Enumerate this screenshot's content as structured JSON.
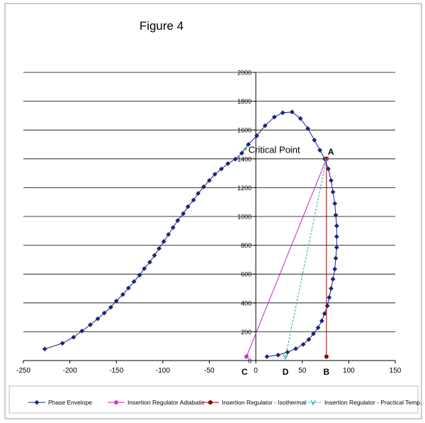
{
  "chart_data": {
    "type": "scatter",
    "title": "Figure 4",
    "xlabel": "",
    "ylabel": "",
    "xlim": [
      -250,
      150
    ],
    "ylim": [
      0,
      2000
    ],
    "x_ticks": [
      -250,
      -200,
      -150,
      -100,
      -50,
      0,
      50,
      100,
      150
    ],
    "y_ticks": [
      0,
      200,
      400,
      600,
      800,
      1000,
      1200,
      1400,
      1600,
      1800,
      2000
    ],
    "grid": "horizontal",
    "legend_position": "bottom",
    "colors": {
      "envelope": "#1a237e",
      "adiabatic": "#c026c0",
      "isothermal": "#8b0000",
      "practical": "#2aa6a6",
      "grid": "#000000",
      "critical_point": "#4caf50"
    },
    "series": [
      {
        "name": "Phase Envelope",
        "style": "line-diamond",
        "x": [
          -227,
          -208,
          -196,
          -187,
          -178,
          -170,
          -163,
          -156,
          -150,
          -143,
          -137,
          -131,
          -125,
          -120,
          -114,
          -109,
          -104,
          -99,
          -94,
          -89,
          -84,
          -78,
          -73,
          -67,
          -62,
          -56,
          -50,
          -44,
          -37,
          -30,
          -22,
          -15,
          -8,
          1,
          10,
          20,
          29,
          39,
          48,
          56,
          63,
          69,
          74,
          78,
          81,
          83,
          85,
          86,
          87,
          87,
          87,
          86,
          85,
          83,
          81,
          79,
          77,
          74,
          71,
          67,
          62,
          57,
          51,
          43,
          34,
          24,
          12
        ],
        "y": [
          80,
          120,
          162,
          205,
          248,
          290,
          330,
          370,
          413,
          458,
          503,
          548,
          593,
          638,
          683,
          730,
          778,
          826,
          875,
          923,
          972,
          1020,
          1068,
          1114,
          1160,
          1206,
          1250,
          1293,
          1330,
          1367,
          1398,
          1440,
          1500,
          1560,
          1630,
          1690,
          1720,
          1725,
          1680,
          1610,
          1530,
          1460,
          1400,
          1330,
          1250,
          1170,
          1090,
          1010,
          935,
          860,
          785,
          710,
          635,
          565,
          500,
          438,
          380,
          326,
          275,
          228,
          186,
          146,
          112,
          82,
          58,
          38,
          27
        ]
      },
      {
        "name": "Insertion Regulator Adiabatic",
        "style": "line-star",
        "x": [
          -10,
          76
        ],
        "y": [
          27,
          1400
        ]
      },
      {
        "name": "Insertion Regulator - Isothermal",
        "style": "line-circle",
        "x": [
          76,
          76
        ],
        "y": [
          27,
          1400
        ]
      },
      {
        "name": "Insertion Regulator - Practical Temp.",
        "style": "dashed-tick",
        "x": [
          32,
          76
        ],
        "y": [
          27,
          1400
        ]
      }
    ],
    "annotations": [
      {
        "text": "Critical Point",
        "x": -11,
        "y": 1470
      },
      {
        "text": "A",
        "x": 76,
        "y": 1400
      },
      {
        "text": "B",
        "x": 76,
        "y": 0
      },
      {
        "text": "C",
        "x": -12,
        "y": 0
      },
      {
        "text": "D",
        "x": 32,
        "y": 0
      }
    ]
  }
}
